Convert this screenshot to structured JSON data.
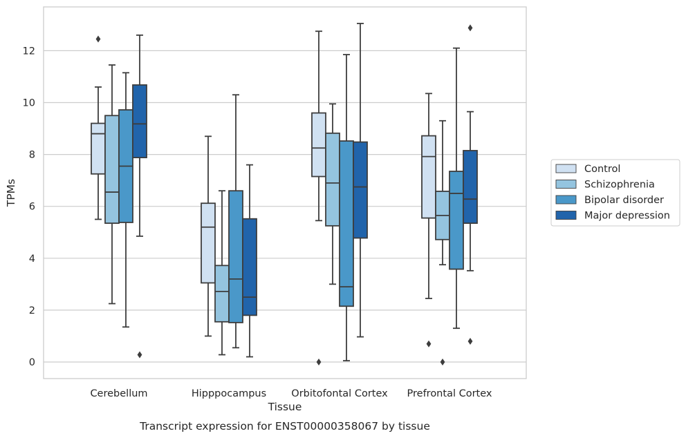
{
  "chart_data": {
    "type": "box",
    "title": "",
    "caption": "Transcript expression for ENST00000358067 by tissue",
    "xlabel": "Tissue",
    "ylabel": "TPMs",
    "ylim": [
      -0.6,
      13.4
    ],
    "yticks": [
      0,
      2,
      4,
      6,
      8,
      10,
      12
    ],
    "grid": "horizontal",
    "legend_position": "right",
    "categories": [
      "Cerebellum",
      "Hipppocampus",
      "Orbitofontal Cortex",
      "Prefrontal Cortex"
    ],
    "series": [
      {
        "name": "Control",
        "color": "#d0e1f2",
        "boxes": [
          {
            "whislo": 5.5,
            "q1": 7.25,
            "med": 8.8,
            "q3": 9.2,
            "whishi": 10.6,
            "fliers": [
              12.45
            ]
          },
          {
            "whislo": 1.0,
            "q1": 3.05,
            "med": 5.2,
            "q3": 6.12,
            "whishi": 8.7,
            "fliers": []
          },
          {
            "whislo": 5.45,
            "q1": 7.15,
            "med": 8.25,
            "q3": 9.6,
            "whishi": 12.75,
            "fliers": [
              0.0
            ]
          },
          {
            "whislo": 2.45,
            "q1": 5.55,
            "med": 7.92,
            "q3": 8.72,
            "whishi": 10.35,
            "fliers": [
              0.7
            ]
          }
        ]
      },
      {
        "name": "Schizophrenia",
        "color": "#94c4df",
        "boxes": [
          {
            "whislo": 2.25,
            "q1": 5.35,
            "med": 6.55,
            "q3": 9.5,
            "whishi": 11.45,
            "fliers": []
          },
          {
            "whislo": 0.28,
            "q1": 1.55,
            "med": 2.72,
            "q3": 3.72,
            "whishi": 6.6,
            "fliers": []
          },
          {
            "whislo": 3.0,
            "q1": 5.25,
            "med": 6.9,
            "q3": 8.82,
            "whishi": 9.95,
            "fliers": []
          },
          {
            "whislo": 3.75,
            "q1": 4.72,
            "med": 5.65,
            "q3": 6.58,
            "whishi": 9.3,
            "fliers": [
              0.0
            ]
          }
        ]
      },
      {
        "name": "Bipolar disorder",
        "color": "#4a98c9",
        "boxes": [
          {
            "whislo": 1.35,
            "q1": 5.38,
            "med": 7.55,
            "q3": 9.72,
            "whishi": 11.15,
            "fliers": []
          },
          {
            "whislo": 0.55,
            "q1": 1.52,
            "med": 3.2,
            "q3": 6.6,
            "whishi": 10.3,
            "fliers": []
          },
          {
            "whislo": 0.05,
            "q1": 2.15,
            "med": 2.9,
            "q3": 8.52,
            "whishi": 11.85,
            "fliers": []
          },
          {
            "whislo": 1.3,
            "q1": 3.58,
            "med": 6.5,
            "q3": 7.35,
            "whishi": 12.1,
            "fliers": []
          }
        ]
      },
      {
        "name": "Major depression",
        "color": "#2164ab",
        "boxes": [
          {
            "whislo": 4.85,
            "q1": 7.88,
            "med": 9.18,
            "q3": 10.68,
            "whishi": 12.6,
            "fliers": [
              0.28
            ]
          },
          {
            "whislo": 0.2,
            "q1": 1.8,
            "med": 2.5,
            "q3": 5.52,
            "whishi": 7.6,
            "fliers": []
          },
          {
            "whislo": 0.97,
            "q1": 4.78,
            "med": 6.75,
            "q3": 8.48,
            "whishi": 13.05,
            "fliers": []
          },
          {
            "whislo": 3.52,
            "q1": 5.35,
            "med": 6.28,
            "q3": 8.15,
            "whishi": 9.65,
            "fliers": [
              12.88,
              0.8
            ]
          }
        ]
      }
    ]
  }
}
